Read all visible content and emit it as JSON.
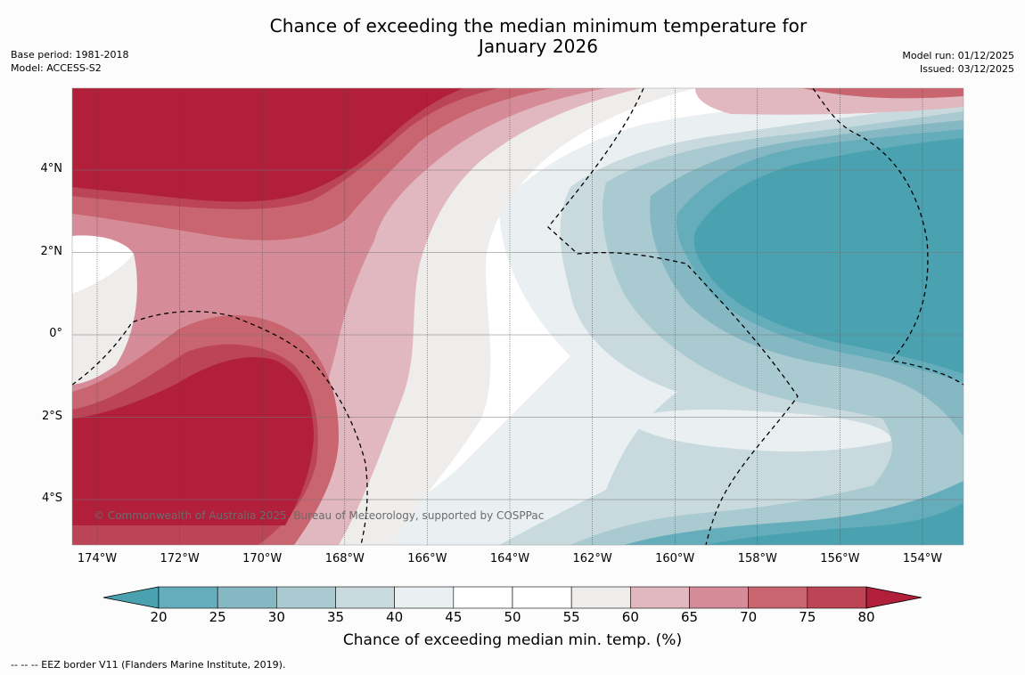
{
  "title": {
    "line1": "Chance of exceeding the median minimum temperature for",
    "line2": "January 2026"
  },
  "meta_left": {
    "base_period": "Base period: 1981-2018",
    "model": "Model: ACCESS-S2"
  },
  "meta_right": {
    "model_run": "Model run: 01/12/2025",
    "issued": "Issued: 03/12/2025"
  },
  "map": {
    "lat_labels": [
      "4°N",
      "2°N",
      "0°",
      "2°S",
      "4°S"
    ],
    "lat_values": [
      4,
      2,
      0,
      -2,
      -4
    ],
    "lon_labels": [
      "174°W",
      "172°W",
      "170°W",
      "168°W",
      "166°W",
      "164°W",
      "162°W",
      "160°W",
      "158°W",
      "156°W",
      "154°W"
    ],
    "lon_values": [
      -174,
      -172,
      -170,
      -168,
      -166,
      -164,
      -162,
      -160,
      -158,
      -156,
      -154
    ],
    "copyright": "© Commonwealth of Australia 2025, Bureau of Meteorology, supported by COSPPac"
  },
  "colorbar": {
    "title": "Chance of exceeding median min. temp. (%)",
    "ticks": [
      "20",
      "25",
      "30",
      "35",
      "40",
      "45",
      "50",
      "55",
      "60",
      "65",
      "70",
      "75",
      "80"
    ],
    "colors": {
      "below": "#4aa2b1",
      "bins": [
        "#65adbb",
        "#86b8c4",
        "#a9cad0",
        "#c9dadf",
        "#eaf0f1",
        "#ffffff",
        "#ffffff",
        "#efecec",
        "#e1b8bf",
        "#d68c98",
        "#c9656f",
        "#bb4554"
      ],
      "above": "#b11f3b"
    }
  },
  "footnote": "--  --  -- EEZ border V11 (Flanders Marine Institute, 2019)."
}
